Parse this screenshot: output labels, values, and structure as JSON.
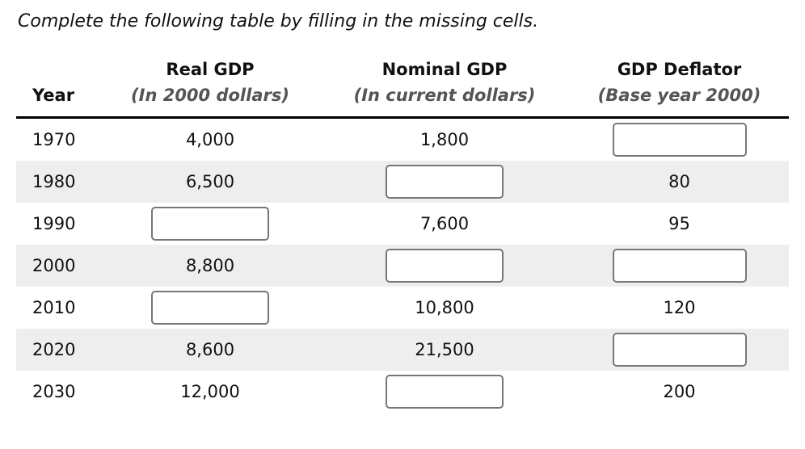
{
  "title": "Complete the following table by filling in the missing cells.",
  "table": {
    "header": {
      "year_label": "Year",
      "columns": [
        {
          "title": "Real GDP",
          "subtitle": "(In 2000 dollars)"
        },
        {
          "title": "Nominal GDP",
          "subtitle": "(In current dollars)"
        },
        {
          "title": "GDP Deflator",
          "subtitle": "(Base year 2000)"
        }
      ]
    },
    "rows": [
      {
        "year": "1970",
        "real_gdp": "4,000",
        "nominal_gdp": "1,800",
        "gdp_deflator": "",
        "blank_input_cells": [
          "gdp_deflator"
        ]
      },
      {
        "year": "1980",
        "real_gdp": "6,500",
        "nominal_gdp": "",
        "gdp_deflator": "80",
        "blank_input_cells": [
          "nominal_gdp"
        ]
      },
      {
        "year": "1990",
        "real_gdp": "",
        "nominal_gdp": "7,600",
        "gdp_deflator": "95",
        "blank_input_cells": [
          "real_gdp"
        ]
      },
      {
        "year": "2000",
        "real_gdp": "8,800",
        "nominal_gdp": "",
        "gdp_deflator": "",
        "blank_input_cells": [
          "nominal_gdp",
          "gdp_deflator"
        ]
      },
      {
        "year": "2010",
        "real_gdp": "",
        "nominal_gdp": "10,800",
        "gdp_deflator": "120",
        "blank_input_cells": [
          "real_gdp"
        ]
      },
      {
        "year": "2020",
        "real_gdp": "8,600",
        "nominal_gdp": "21,500",
        "gdp_deflator": "",
        "blank_input_cells": [
          "gdp_deflator"
        ]
      },
      {
        "year": "2030",
        "real_gdp": "12,000",
        "nominal_gdp": "",
        "gdp_deflator": "200",
        "blank_input_cells": [
          "nominal_gdp"
        ]
      }
    ]
  },
  "colors": {
    "row_stripe": "#eeeeee",
    "input_border": "#777777",
    "header_rule": "#000000",
    "subtitle_text": "#555555",
    "text": "#111111",
    "background": "#ffffff"
  }
}
